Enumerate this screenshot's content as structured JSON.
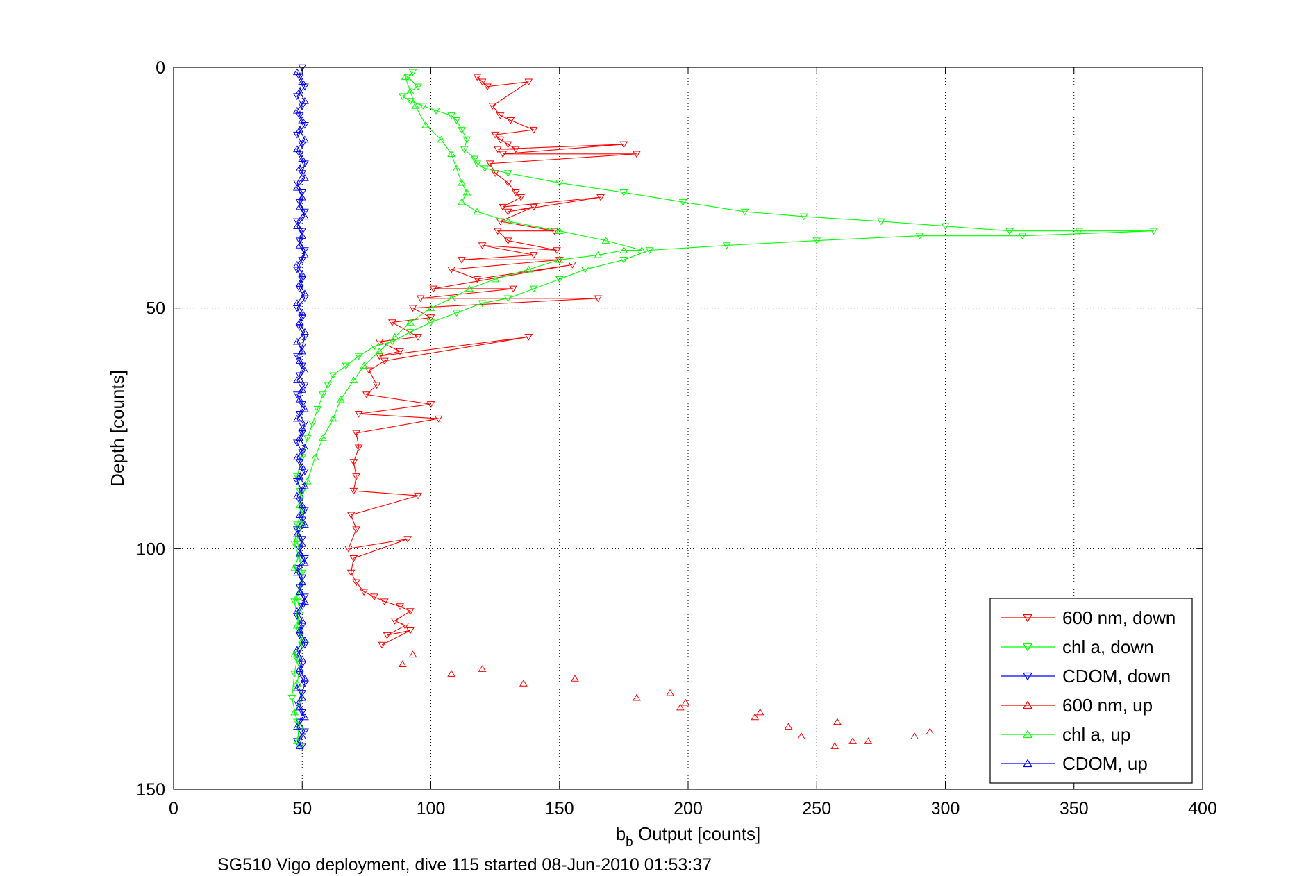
{
  "chart_data": {
    "type": "line",
    "xlabel": {
      "main": "b",
      "sub": "b",
      "rest": " Output [counts]"
    },
    "ylabel": "Depth [counts]",
    "caption": "SG510 Vigo deployment, dive 115 started 08-Jun-2010 01:53:37",
    "xlim": [
      0,
      400
    ],
    "ylim": [
      0,
      150
    ],
    "y_reversed": true,
    "grid": true,
    "legend_position": "bottom-right",
    "xticks": [
      "0",
      "50",
      "100",
      "150",
      "200",
      "250",
      "300",
      "350",
      "400"
    ],
    "yticks": [
      "0",
      "50",
      "100",
      "150"
    ],
    "series": [
      {
        "name": "600 nm, down",
        "color": "#ff0000",
        "marker": "triangle-down",
        "x": [
          118,
          120,
          122,
          138,
          124,
          127,
          131,
          140,
          125,
          127,
          130,
          133,
          126,
          175,
          128,
          180,
          123,
          125,
          130,
          133,
          135,
          128,
          166,
          130,
          140,
          127,
          148,
          126,
          130,
          149,
          120,
          140,
          112,
          150,
          108,
          118,
          155,
          101,
          132,
          96,
          165,
          93,
          100,
          85,
          95,
          80,
          88,
          80,
          138,
          82,
          76,
          79,
          75,
          100,
          72,
          103,
          71,
          72,
          70,
          71,
          70,
          95,
          69,
          71,
          68,
          91,
          70,
          69,
          71,
          74,
          78,
          82,
          88,
          92,
          86,
          90,
          83,
          92,
          81
        ],
        "y": [
          2,
          3,
          4,
          3,
          8,
          10,
          11,
          13,
          14,
          15,
          16,
          17,
          17,
          16,
          18,
          18,
          20,
          22,
          24,
          26,
          27,
          29,
          27,
          30,
          29,
          32,
          34,
          34,
          36,
          38,
          37,
          39,
          40,
          40,
          42,
          44,
          41,
          46,
          46,
          48,
          48,
          50,
          52,
          53,
          56,
          57,
          59,
          60,
          56,
          61,
          63,
          66,
          68,
          70,
          72,
          73,
          76,
          79,
          82,
          85,
          88,
          89,
          93,
          96,
          100,
          98,
          102,
          105,
          107,
          109,
          110,
          111,
          112,
          113,
          115,
          116,
          118,
          117,
          120
        ]
      },
      {
        "name": "chl a, down",
        "color": "#00ff00",
        "marker": "triangle-down",
        "x": [
          93,
          91,
          95,
          89,
          92,
          97,
          102,
          108,
          110,
          112,
          114,
          113,
          117,
          118,
          121,
          130,
          150,
          175,
          198,
          222,
          245,
          275,
          300,
          325,
          352,
          381,
          330,
          290,
          250,
          215,
          185,
          175,
          160,
          150,
          140,
          130,
          120,
          110,
          100,
          92,
          85,
          78,
          72,
          67,
          62,
          60,
          58,
          56,
          54,
          52,
          50,
          48,
          49,
          50,
          48,
          47,
          49,
          50,
          49,
          47,
          48,
          49,
          50,
          48,
          47,
          46,
          48,
          49
        ],
        "y": [
          1,
          2,
          4,
          6,
          7,
          8,
          9,
          10,
          11,
          13,
          15,
          17,
          19,
          20,
          21,
          22,
          24,
          26,
          28,
          30,
          31,
          32,
          33,
          34,
          34,
          34,
          35,
          35,
          36,
          37,
          38,
          40,
          42,
          44,
          46,
          48,
          49,
          51,
          53,
          55,
          57,
          58,
          60,
          62,
          64,
          66,
          68,
          71,
          74,
          77,
          81,
          85,
          88,
          92,
          95,
          99,
          102,
          105,
          108,
          111,
          114,
          117,
          120,
          123,
          126,
          131,
          136,
          141
        ]
      },
      {
        "name": "CDOM, down",
        "color": "#0000ff",
        "marker": "triangle-down",
        "x": [
          50,
          49,
          51,
          48,
          50,
          49,
          51,
          48,
          50,
          49,
          51,
          50,
          48,
          50,
          49,
          51,
          48,
          50,
          49,
          51,
          50,
          48,
          50,
          49,
          51,
          48,
          50,
          49,
          51,
          50,
          48,
          50,
          49,
          51,
          48,
          50,
          49,
          51,
          50,
          48,
          50,
          49,
          51,
          48,
          50,
          49,
          51,
          50,
          48,
          50,
          49,
          51,
          48,
          50,
          49,
          51,
          50,
          48,
          50,
          49,
          51,
          48,
          50,
          49,
          51,
          50,
          48,
          50,
          49,
          51,
          48,
          50
        ],
        "y": [
          0,
          2,
          4,
          6,
          8,
          10,
          12,
          14,
          16,
          18,
          20,
          22,
          24,
          26,
          28,
          30,
          32,
          34,
          36,
          38,
          40,
          42,
          44,
          46,
          48,
          50,
          52,
          54,
          56,
          58,
          60,
          62,
          64,
          66,
          68,
          70,
          72,
          74,
          76,
          78,
          80,
          82,
          84,
          86,
          88,
          90,
          92,
          94,
          96,
          98,
          100,
          102,
          104,
          106,
          108,
          110,
          112,
          114,
          116,
          118,
          120,
          122,
          124,
          126,
          128,
          130,
          132,
          134,
          136,
          138,
          140,
          141
        ]
      },
      {
        "name": "600 nm, up",
        "color": "#ff0000",
        "marker": "triangle-up",
        "x": [
          89,
          93,
          108,
          120,
          136,
          156,
          180,
          193,
          197,
          199,
          226,
          228,
          239,
          244,
          257,
          258,
          264,
          270,
          288,
          294
        ],
        "y": [
          124,
          122,
          126,
          125,
          128,
          127,
          131,
          130,
          133,
          132,
          135,
          134,
          137,
          139,
          141,
          136,
          140,
          140,
          139,
          138
        ]
      },
      {
        "name": "chl a, up",
        "color": "#00ff00",
        "marker": "triangle-up",
        "x": [
          48,
          49,
          47,
          50,
          48,
          49,
          47,
          50,
          48,
          49,
          48,
          50,
          47,
          49,
          48,
          50,
          49,
          52,
          55,
          58,
          62,
          65,
          70,
          74,
          80,
          86,
          92,
          100,
          108,
          115,
          125,
          138,
          150,
          165,
          175,
          182,
          168,
          150,
          130,
          118,
          112,
          114,
          112,
          110,
          108,
          104,
          98,
          94,
          92,
          90
        ],
        "y": [
          140,
          137,
          134,
          131,
          128,
          125,
          122,
          119,
          116,
          113,
          110,
          107,
          104,
          101,
          98,
          95,
          91,
          86,
          81,
          77,
          73,
          69,
          65,
          62,
          59,
          56,
          53,
          50,
          48,
          46,
          44,
          42,
          40,
          39,
          38,
          38,
          36,
          34,
          32,
          30,
          28,
          26,
          24,
          21,
          18,
          15,
          12,
          8,
          5,
          2
        ]
      },
      {
        "name": "CDOM, up",
        "color": "#0000ff",
        "marker": "triangle-up",
        "x": [
          49,
          50,
          48,
          51,
          49,
          50,
          48,
          51,
          49,
          50,
          48,
          51,
          49,
          50,
          48,
          51,
          49,
          50,
          48,
          51,
          49,
          50,
          48,
          51,
          49,
          50,
          48,
          51,
          49,
          50,
          48,
          51,
          49,
          50,
          48,
          51,
          49,
          50,
          48,
          51,
          49,
          50,
          48,
          51,
          49,
          50,
          48,
          51,
          49,
          50,
          48,
          51,
          49,
          50,
          48,
          51,
          49,
          50,
          48,
          51,
          49,
          50,
          48,
          51,
          49,
          50,
          48,
          51,
          49,
          50,
          48
        ],
        "y": [
          141,
          139,
          137,
          135,
          133,
          131,
          129,
          127,
          125,
          123,
          121,
          119,
          117,
          115,
          113,
          111,
          109,
          107,
          105,
          103,
          101,
          99,
          97,
          95,
          93,
          91,
          89,
          87,
          85,
          83,
          81,
          79,
          77,
          75,
          73,
          71,
          69,
          67,
          65,
          63,
          61,
          59,
          57,
          55,
          53,
          51,
          49,
          47,
          45,
          43,
          41,
          39,
          37,
          35,
          33,
          31,
          29,
          27,
          25,
          23,
          21,
          19,
          17,
          15,
          13,
          11,
          9,
          7,
          5,
          3,
          1
        ]
      }
    ]
  }
}
